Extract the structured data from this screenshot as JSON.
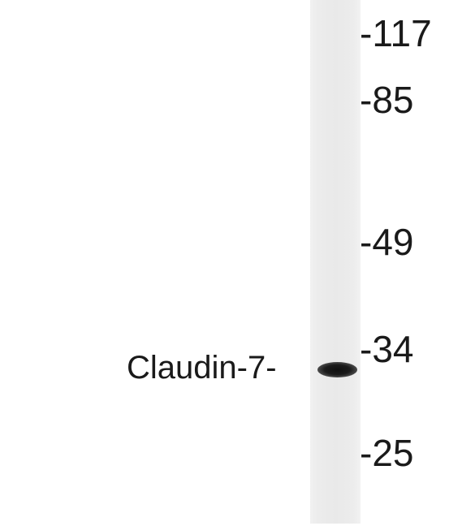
{
  "blot": {
    "protein_label": "Claudin-7-",
    "markers": [
      "-117",
      "-85",
      "-49",
      "-34",
      "-25"
    ]
  }
}
